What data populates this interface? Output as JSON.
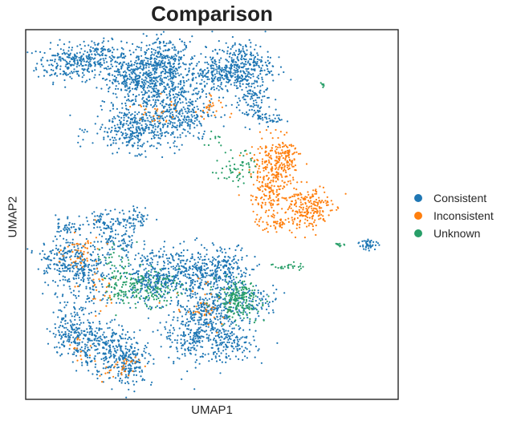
{
  "chart_data": {
    "type": "scatter",
    "title": "Comparison",
    "xlabel": "UMAP1",
    "ylabel": "UMAP2",
    "xlim": [
      0,
      100
    ],
    "ylim": [
      0,
      100
    ],
    "grid": false,
    "ticks": false,
    "legend_position": "right",
    "series": [
      {
        "name": "Consistent",
        "color": "#1f77b4",
        "clusters": [
          {
            "x": 12,
            "y": 91,
            "sx": 4.5,
            "sy": 2.5,
            "n": 220
          },
          {
            "x": 20,
            "y": 93,
            "sx": 3.5,
            "sy": 2.0,
            "n": 120
          },
          {
            "x": 27,
            "y": 87,
            "sx": 3.0,
            "sy": 3.0,
            "n": 120
          },
          {
            "x": 33,
            "y": 86,
            "sx": 5.0,
            "sy": 4.5,
            "n": 420
          },
          {
            "x": 38,
            "y": 91,
            "sx": 4.0,
            "sy": 3.5,
            "n": 260
          },
          {
            "x": 30,
            "y": 73,
            "sx": 6.0,
            "sy": 3.0,
            "n": 360
          },
          {
            "x": 42,
            "y": 78,
            "sx": 4.0,
            "sy": 4.0,
            "n": 240
          },
          {
            "x": 52,
            "y": 88,
            "sx": 3.5,
            "sy": 2.5,
            "n": 180
          },
          {
            "x": 58,
            "y": 90,
            "sx": 4.0,
            "sy": 3.5,
            "n": 300
          },
          {
            "x": 61,
            "y": 80,
            "sx": 2.5,
            "sy": 3.0,
            "n": 100
          },
          {
            "x": 66,
            "y": 76,
            "sx": 1.8,
            "sy": 1.0,
            "n": 30
          },
          {
            "x": 11,
            "y": 47,
            "sx": 1.5,
            "sy": 1.5,
            "n": 40
          },
          {
            "x": 22,
            "y": 48,
            "sx": 3.0,
            "sy": 1.5,
            "n": 80
          },
          {
            "x": 30,
            "y": 49,
            "sx": 2.0,
            "sy": 1.5,
            "n": 50
          },
          {
            "x": 10,
            "y": 38,
            "sx": 3.5,
            "sy": 3.0,
            "n": 160
          },
          {
            "x": 16,
            "y": 33,
            "sx": 4.0,
            "sy": 5.0,
            "n": 220
          },
          {
            "x": 25,
            "y": 42,
            "sx": 3.0,
            "sy": 2.0,
            "n": 80
          },
          {
            "x": 34,
            "y": 33,
            "sx": 4.0,
            "sy": 3.5,
            "n": 260
          },
          {
            "x": 45,
            "y": 34,
            "sx": 5.0,
            "sy": 3.5,
            "n": 320
          },
          {
            "x": 55,
            "y": 35,
            "sx": 3.0,
            "sy": 3.0,
            "n": 140
          },
          {
            "x": 62,
            "y": 26,
            "sx": 3.0,
            "sy": 2.0,
            "n": 80
          },
          {
            "x": 13,
            "y": 18,
            "sx": 3.0,
            "sy": 3.5,
            "n": 200
          },
          {
            "x": 21,
            "y": 14,
            "sx": 4.0,
            "sy": 3.5,
            "n": 220
          },
          {
            "x": 28,
            "y": 10,
            "sx": 3.0,
            "sy": 3.0,
            "n": 180
          },
          {
            "x": 45,
            "y": 18,
            "sx": 4.0,
            "sy": 4.5,
            "n": 260
          },
          {
            "x": 51,
            "y": 24,
            "sx": 4.0,
            "sy": 3.5,
            "n": 240
          },
          {
            "x": 55,
            "y": 15,
            "sx": 3.5,
            "sy": 2.5,
            "n": 140
          },
          {
            "x": 92,
            "y": 42,
            "sx": 1.3,
            "sy": 0.8,
            "n": 40
          }
        ]
      },
      {
        "name": "Inconsistent",
        "color": "#ff7f0e",
        "clusters": [
          {
            "x": 66,
            "y": 60,
            "sx": 2.8,
            "sy": 5.0,
            "n": 280
          },
          {
            "x": 70,
            "y": 66,
            "sx": 2.0,
            "sy": 2.0,
            "n": 90
          },
          {
            "x": 76,
            "y": 52,
            "sx": 3.0,
            "sy": 3.0,
            "n": 200
          },
          {
            "x": 68,
            "y": 48,
            "sx": 3.0,
            "sy": 1.5,
            "n": 70
          },
          {
            "x": 50,
            "y": 79,
            "sx": 2.5,
            "sy": 1.5,
            "n": 25
          },
          {
            "x": 35,
            "y": 78,
            "sx": 3.0,
            "sy": 2.0,
            "n": 25
          },
          {
            "x": 15,
            "y": 39,
            "sx": 2.5,
            "sy": 3.5,
            "n": 50
          },
          {
            "x": 20,
            "y": 30,
            "sx": 2.0,
            "sy": 3.0,
            "n": 25
          },
          {
            "x": 48,
            "y": 25,
            "sx": 4.0,
            "sy": 3.0,
            "n": 40
          },
          {
            "x": 25,
            "y": 8,
            "sx": 3.0,
            "sy": 2.0,
            "n": 30
          },
          {
            "x": 15,
            "y": 14,
            "sx": 2.0,
            "sy": 2.0,
            "n": 15
          }
        ]
      },
      {
        "name": "Unknown",
        "color": "#279e68",
        "clusters": [
          {
            "x": 57,
            "y": 27,
            "sx": 3.0,
            "sy": 2.5,
            "n": 200
          },
          {
            "x": 32,
            "y": 30,
            "sx": 4.5,
            "sy": 2.5,
            "n": 150
          },
          {
            "x": 26,
            "y": 33,
            "sx": 2.0,
            "sy": 4.0,
            "n": 60
          },
          {
            "x": 57,
            "y": 63,
            "sx": 2.5,
            "sy": 2.5,
            "n": 60
          },
          {
            "x": 50,
            "y": 70,
            "sx": 1.5,
            "sy": 1.0,
            "n": 10
          },
          {
            "x": 71,
            "y": 36,
            "sx": 2.0,
            "sy": 0.6,
            "n": 25
          },
          {
            "x": 84,
            "y": 42,
            "sx": 0.8,
            "sy": 0.3,
            "n": 10
          },
          {
            "x": 80,
            "y": 85,
            "sx": 0.5,
            "sy": 0.4,
            "n": 6
          },
          {
            "x": 22,
            "y": 38,
            "sx": 1.5,
            "sy": 1.5,
            "n": 10
          }
        ]
      }
    ]
  }
}
